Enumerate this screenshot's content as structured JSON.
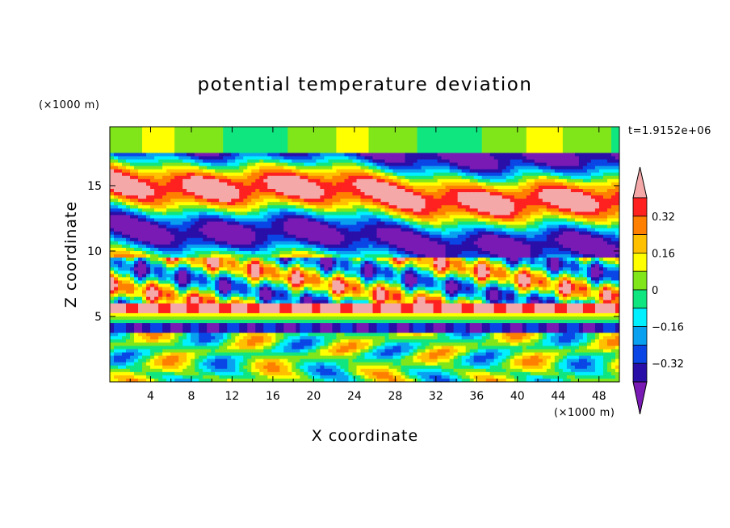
{
  "chart_data": {
    "type": "heatmap",
    "title": "potential temperature deviation",
    "xlabel": "X coordinate",
    "ylabel": "Z coordinate",
    "x_unit": "(×1000 m)",
    "y_unit": "(×1000 m)",
    "time_label": "t=1.9152e+06",
    "xlim": [
      0,
      50
    ],
    "ylim": [
      0,
      19.5
    ],
    "x_ticks": [
      4,
      8,
      12,
      16,
      20,
      24,
      28,
      32,
      36,
      40,
      44,
      48
    ],
    "y_ticks": [
      5,
      10,
      15
    ],
    "colorbar": {
      "levels": [
        -0.4,
        -0.32,
        -0.24,
        -0.16,
        -0.08,
        0,
        0.08,
        0.16,
        0.24,
        0.32,
        0.4
      ],
      "labels": [
        "0.32",
        "0.16",
        "0",
        "−0.16",
        "−0.32"
      ],
      "label_values": [
        0.32,
        0.16,
        0,
        -0.16,
        -0.32
      ],
      "colors": [
        "#7a1ab4",
        "#2a0ea8",
        "#0a46e6",
        "#0aa0f0",
        "#00f0ff",
        "#10e680",
        "#80e61a",
        "#ffff00",
        "#ffc000",
        "#ff8000",
        "#ff2020",
        "#f5a8a8"
      ]
    }
  }
}
